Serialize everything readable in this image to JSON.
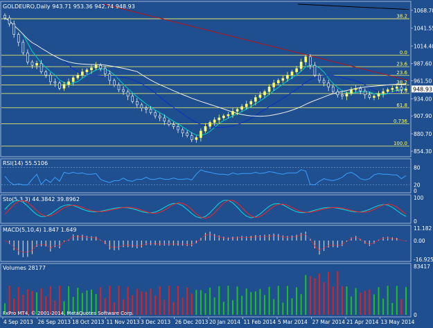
{
  "chart_data": {
    "type": "candlestick",
    "main": {
      "header": "GOLDEURO,Daily  943.71 953.36 942.74 948.93",
      "ylim": [
        848,
        1078
      ],
      "price_ticks": [
        "1068.70",
        "1041.55",
        "1014.40",
        "987.60",
        "961.50",
        "934.00",
        "907.90",
        "880.70",
        "854.30"
      ],
      "price_tick_values": [
        1068.7,
        1041.55,
        1014.4,
        987.6,
        961.5,
        934.0,
        907.9,
        880.7,
        854.3
      ],
      "current_price": "948.93",
      "current_price_value": 948.93,
      "fib_upper": {
        "levels": [
          {
            "label": "38.2",
            "value": 1055.8,
            "color": "#ffff66"
          },
          {
            "label": "0.0",
            "value": 1000.2,
            "color": "#ffff66"
          },
          {
            "label": "23.6",
            "value": 982.9,
            "color": "#ffff66"
          },
          {
            "label": "23.6",
            "value": 969.6,
            "color": "#ffff66"
          },
          {
            "label": "38.2",
            "value": 955.2,
            "color": "#ffff66"
          },
          {
            "label": "50.0",
            "value": 942.0,
            "color": "#ffff66"
          },
          {
            "label": "61.8",
            "value": 920.5,
            "color": "#ffff66"
          },
          {
            "label": "0.736",
            "value": 896.0,
            "color": "#ffff66"
          },
          {
            "label": "100.0",
            "value": 862.0,
            "color": "#ffff66"
          }
        ]
      },
      "series": [
        {
          "name": "closes",
          "values": [
            1057,
            1048,
            1032,
            1020,
            1004,
            990,
            985,
            988,
            975,
            970,
            960,
            958,
            950,
            956,
            960,
            966,
            970,
            975,
            978,
            981,
            985,
            980,
            972,
            962,
            955,
            948,
            945,
            938,
            930,
            925,
            920,
            918,
            913,
            908,
            905,
            900,
            895,
            892,
            887,
            882,
            878,
            872,
            875,
            885,
            892,
            898,
            902,
            905,
            908,
            910,
            915,
            918,
            922,
            926,
            930,
            936,
            940,
            945,
            952,
            958,
            962,
            965,
            970,
            975,
            980,
            990,
            998,
            985,
            970,
            962,
            958,
            952,
            945,
            940,
            938,
            942,
            948,
            950,
            946,
            940,
            936,
            938,
            942,
            945,
            948,
            950,
            952,
            948,
            949
          ]
        }
      ]
    },
    "rsi": {
      "label": "RSI(14) 55.5106",
      "ticks": [
        "80",
        "20",
        "0"
      ],
      "tick_values": [
        80,
        20,
        0
      ],
      "ylim": [
        0,
        100
      ]
    },
    "stoch": {
      "label": "Sto(5,3,3) 44.3842 39.8962",
      "ticks": [
        "100",
        "0"
      ],
      "tick_values": [
        100,
        0
      ],
      "ylim": [
        0,
        100
      ]
    },
    "macd": {
      "label": "MACD(5,10,4) 1.847 1.649",
      "ticks": [
        "11.182",
        "0.00",
        "-16.925"
      ],
      "tick_values": [
        11.182,
        0.0,
        -16.925
      ],
      "ylim": [
        -16.925,
        11.182
      ]
    },
    "volumes": {
      "label": "Volumes 28177",
      "ticks": [
        "83417",
        "0"
      ],
      "tick_values": [
        83417,
        0
      ],
      "ylim": [
        0,
        83417
      ]
    },
    "x_dates": [
      "4 Sep 2013",
      "26 Sep 2013",
      "18 Oct 2013",
      "11 Nov 2013",
      "3 Dec 2013",
      "26 Dec 2013",
      "20 Jan 2014",
      "11 Feb 2014",
      "5 Mar 2014",
      "27 Mar 2014",
      "21 Apr 2014",
      "13 May 2014"
    ],
    "copyright": "FxPro MT4, © 2001-2014, MetaQuotes Software Corp.",
    "colors": {
      "background": "#1f4f8f",
      "up_candle": "#ffff66",
      "down_candle": "#ffffff",
      "ma_cyan": "#00d0c0",
      "ma_white": "#f0f0f0",
      "ma_blue": "#1030c0",
      "line_red": "#c01010",
      "line_black": "#000000",
      "rsi": "#3aa0ff",
      "stoch_main": "#00e0e0",
      "stoch_signal": "#ff2020",
      "macd_hist": "#d0d0d0",
      "macd_signal": "#ff2020",
      "volume_green": "#20c020",
      "volume_red": "#e02020"
    }
  }
}
